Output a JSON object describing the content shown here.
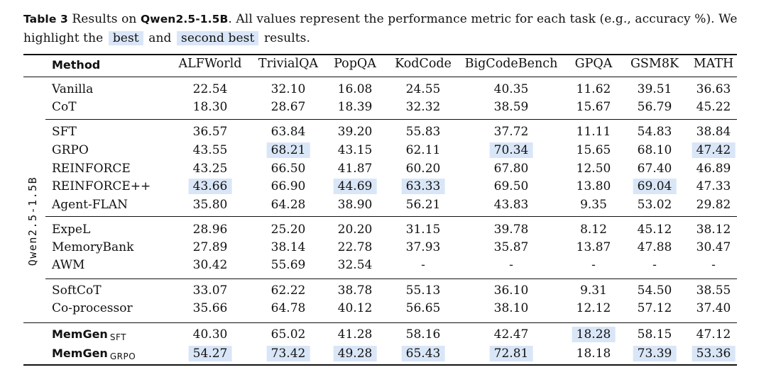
{
  "caption": {
    "label": "Table 3",
    "text_before_model": "Results on",
    "model": "Qwen2.5-1.5B",
    "text_after_model": ". All values represent the performance metric for each task (e.g., accuracy %). We highlight the",
    "best_label": "best",
    "and_text": "and",
    "second_label": "second best",
    "end_text": "results."
  },
  "model_group_label": "Qwen2.5-1.5B",
  "colors": {
    "highlight": "#d9e6f7",
    "text": "#111111"
  },
  "table": {
    "headers": [
      "Method",
      "ALFWorld",
      "TrivialQA",
      "PopQA",
      "KodCode",
      "BigCodeBench",
      "GPQA",
      "GSM8K",
      "MATH"
    ],
    "rows": [
      {
        "name": "Vanilla",
        "values": [
          "22.54",
          "32.10",
          "16.08",
          "24.55",
          "40.35",
          "11.62",
          "39.51",
          "36.63"
        ]
      },
      {
        "name": "CoT",
        "values": [
          "18.30",
          "28.67",
          "18.39",
          "32.32",
          "38.59",
          "15.67",
          "56.79",
          "45.22"
        ]
      },
      {
        "name": "SFT",
        "values": [
          "36.57",
          "63.84",
          "39.20",
          "55.83",
          "37.72",
          "11.11",
          "54.83",
          "38.84"
        ]
      },
      {
        "name": "GRPO",
        "values": [
          "43.55",
          "68.21",
          "43.15",
          "62.11",
          "70.34",
          "15.65",
          "68.10",
          "47.42"
        ],
        "highlight": [
          "",
          "second",
          "",
          "",
          "second",
          "",
          "",
          "second"
        ]
      },
      {
        "name": "REINFORCE",
        "values": [
          "43.25",
          "66.50",
          "41.87",
          "60.20",
          "67.80",
          "12.50",
          "67.40",
          "46.89"
        ]
      },
      {
        "name": "REINFORCE++",
        "values": [
          "43.66",
          "66.90",
          "44.69",
          "63.33",
          "69.50",
          "13.80",
          "69.04",
          "47.33"
        ],
        "highlight": [
          "second",
          "",
          "second",
          "second",
          "",
          "",
          "second",
          ""
        ]
      },
      {
        "name": "Agent-FLAN",
        "values": [
          "35.80",
          "64.28",
          "38.90",
          "56.21",
          "43.83",
          "9.35",
          "53.02",
          "29.82"
        ]
      },
      {
        "name": "ExpeL",
        "values": [
          "28.96",
          "25.20",
          "20.20",
          "31.15",
          "39.78",
          "8.12",
          "45.12",
          "38.12"
        ]
      },
      {
        "name": "MemoryBank",
        "values": [
          "27.89",
          "38.14",
          "22.78",
          "37.93",
          "35.87",
          "13.87",
          "47.88",
          "30.47"
        ]
      },
      {
        "name": "AWM",
        "values": [
          "30.42",
          "55.69",
          "32.54",
          "-",
          "-",
          "-",
          "-",
          "-"
        ]
      },
      {
        "name": "SoftCoT",
        "values": [
          "33.07",
          "62.22",
          "38.78",
          "55.13",
          "36.10",
          "9.31",
          "54.50",
          "38.55"
        ]
      },
      {
        "name": "Co-processor",
        "values": [
          "35.66",
          "64.78",
          "40.12",
          "56.65",
          "38.10",
          "12.12",
          "57.12",
          "37.40"
        ]
      },
      {
        "name": "MemGen",
        "sub": "SFT",
        "bold": true,
        "values": [
          "40.30",
          "65.02",
          "41.28",
          "58.16",
          "42.47",
          "18.28",
          "58.15",
          "47.12"
        ],
        "highlight": [
          "",
          "",
          "",
          "",
          "",
          "best",
          "",
          ""
        ]
      },
      {
        "name": "MemGen",
        "sub": "GRPO",
        "bold": true,
        "values": [
          "54.27",
          "73.42",
          "49.28",
          "65.43",
          "72.81",
          "18.18",
          "73.39",
          "53.36"
        ],
        "highlight": [
          "best",
          "best",
          "best",
          "best",
          "best",
          "",
          "best",
          "best"
        ]
      }
    ]
  }
}
